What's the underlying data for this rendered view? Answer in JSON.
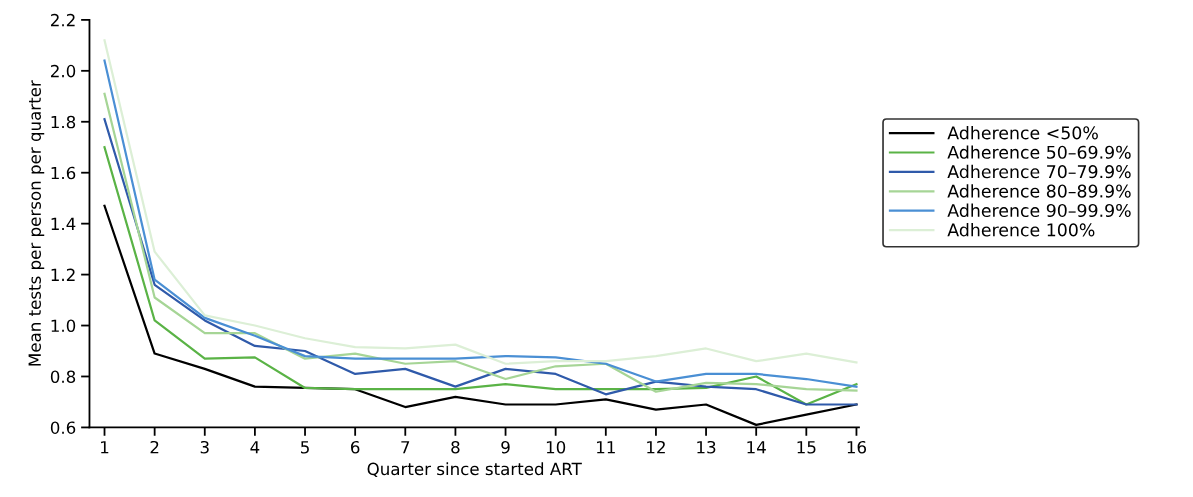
{
  "chart_data": {
    "type": "line",
    "xlabel": "Quarter since started ART",
    "ylabel": "Mean tests per person per quarter",
    "x": [
      1,
      2,
      3,
      4,
      5,
      6,
      7,
      8,
      9,
      10,
      11,
      12,
      13,
      14,
      15,
      16
    ],
    "xlim": [
      0.7,
      16.05
    ],
    "xticks": [
      1,
      2,
      3,
      4,
      5,
      6,
      7,
      8,
      9,
      10,
      11,
      12,
      13,
      14,
      15,
      16
    ],
    "ylim": [
      0.6,
      2.2
    ],
    "yticks": [
      {
        "value": 0.6,
        "label": "0.6"
      },
      {
        "value": 0.8,
        "label": "0.8"
      },
      {
        "value": 1.0,
        "label": "1.0"
      },
      {
        "value": 1.2,
        "label": "1.2"
      },
      {
        "value": 1.4,
        "label": "1.4"
      },
      {
        "value": 1.6,
        "label": "1.6"
      },
      {
        "value": 1.8,
        "label": "1.8"
      },
      {
        "value": 2.0,
        "label": "2.0"
      },
      {
        "value": 2.2,
        "label": "2.2"
      }
    ],
    "grid": false,
    "legend": "right",
    "marker": "none",
    "line_style": "solid",
    "series": [
      {
        "name": "Adherence <50%",
        "color": "#000000",
        "values": [
          1.47,
          0.89,
          0.83,
          0.76,
          0.755,
          0.75,
          0.68,
          0.72,
          0.69,
          0.69,
          0.71,
          0.67,
          0.69,
          0.61,
          0.65,
          0.69
        ]
      },
      {
        "name": "Adherence 50–69.9%",
        "color": "#5ab346",
        "values": [
          1.7,
          1.02,
          0.87,
          0.875,
          0.755,
          0.75,
          0.75,
          0.75,
          0.77,
          0.75,
          0.75,
          0.75,
          0.755,
          0.8,
          0.69,
          0.77
        ]
      },
      {
        "name": "Adherence 70–79.9%",
        "color": "#2f5aaa",
        "values": [
          1.81,
          1.16,
          1.02,
          0.92,
          0.9,
          0.81,
          0.83,
          0.76,
          0.83,
          0.81,
          0.73,
          0.78,
          0.76,
          0.75,
          0.69,
          0.69
        ]
      },
      {
        "name": "Adherence 80–89.9%",
        "color": "#a6d596",
        "values": [
          1.91,
          1.11,
          0.97,
          0.97,
          0.87,
          0.89,
          0.85,
          0.86,
          0.79,
          0.84,
          0.85,
          0.74,
          0.775,
          0.77,
          0.75,
          0.745
        ]
      },
      {
        "name": "Adherence 90–99.9%",
        "color": "#4a8fd4",
        "values": [
          2.04,
          1.18,
          1.03,
          0.96,
          0.88,
          0.87,
          0.87,
          0.87,
          0.88,
          0.875,
          0.85,
          0.78,
          0.81,
          0.81,
          0.79,
          0.76
        ]
      },
      {
        "name": "Adherence 100%",
        "color": "#dcefd6",
        "values": [
          2.12,
          1.29,
          1.04,
          1.0,
          0.95,
          0.915,
          0.91,
          0.925,
          0.85,
          0.86,
          0.86,
          0.88,
          0.91,
          0.86,
          0.89,
          0.855
        ]
      }
    ]
  }
}
